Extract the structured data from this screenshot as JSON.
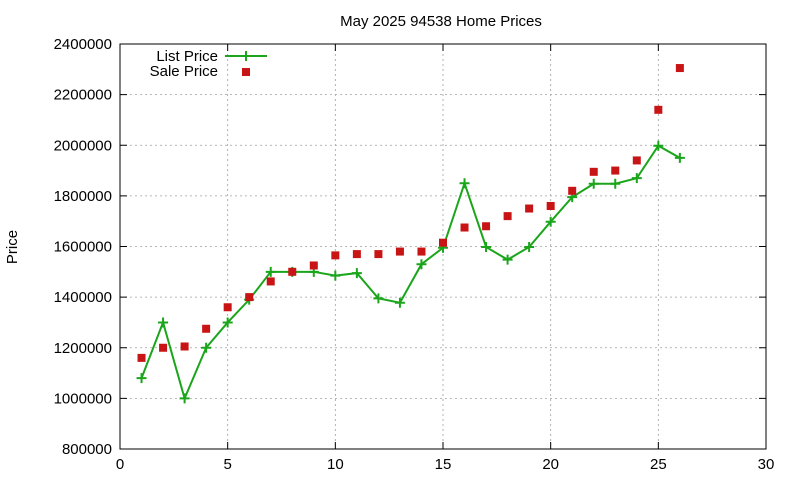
{
  "chart_data": {
    "type": "line",
    "title": "May 2025 94538 Home Prices",
    "xlabel": "",
    "ylabel": "Price",
    "xlim": [
      0,
      30
    ],
    "ylim": [
      800000,
      2400000
    ],
    "x_ticks": [
      0,
      5,
      10,
      15,
      20,
      25,
      30
    ],
    "y_ticks": [
      800000,
      1000000,
      1200000,
      1400000,
      1600000,
      1800000,
      2000000,
      2200000,
      2400000
    ],
    "grid": true,
    "legend_position": "top-left",
    "series": [
      {
        "name": "List Price",
        "style": "line-with-plus-markers",
        "color": "#1aa51a",
        "x": [
          1,
          2,
          3,
          4,
          5,
          6,
          7,
          8,
          9,
          10,
          11,
          12,
          13,
          14,
          15,
          16,
          17,
          18,
          19,
          20,
          21,
          22,
          23,
          24,
          25,
          26
        ],
        "y": [
          1080000,
          1300000,
          1000000,
          1200000,
          1300000,
          1390000,
          1500000,
          1500000,
          1500000,
          1485000,
          1495000,
          1395000,
          1378000,
          1530000,
          1595000,
          1850000,
          1598000,
          1548000,
          1598000,
          1698000,
          1795000,
          1848000,
          1848000,
          1870000,
          1998000,
          1950000
        ]
      },
      {
        "name": "Sale Price",
        "style": "square-markers",
        "color": "#c81414",
        "x": [
          1,
          2,
          3,
          4,
          5,
          6,
          7,
          8,
          9,
          10,
          11,
          12,
          13,
          14,
          15,
          16,
          17,
          18,
          19,
          20,
          21,
          22,
          23,
          24,
          25,
          26
        ],
        "y": [
          1160000,
          1200000,
          1205000,
          1275000,
          1360000,
          1400000,
          1462000,
          1500000,
          1525000,
          1565000,
          1570000,
          1570000,
          1580000,
          1580000,
          1615000,
          1675000,
          1680000,
          1720000,
          1750000,
          1760000,
          1820000,
          1895000,
          1900000,
          1940000,
          2140000,
          2305000
        ]
      }
    ]
  }
}
